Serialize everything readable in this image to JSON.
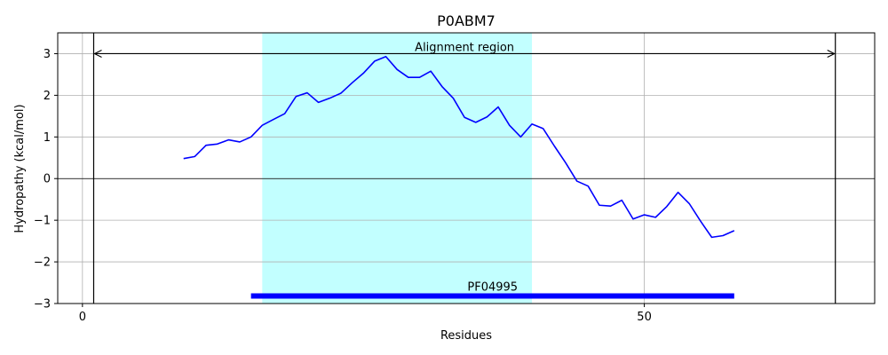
{
  "chart_data": {
    "type": "line",
    "title": "P0ABM7",
    "xlabel": "Residues",
    "ylabel": "Hydropathy (kcal/mol)",
    "xlim": [
      -2.2,
      70.5
    ],
    "ylim": [
      -3,
      3.5
    ],
    "x_ticks": [
      0,
      50
    ],
    "y_ticks": [
      -3,
      -2,
      -1,
      0,
      1,
      2,
      3
    ],
    "y_tick_labels": [
      "−3",
      "−2",
      "−1",
      "0",
      "1",
      "2",
      "3"
    ],
    "x_tick_labels": [
      "0",
      "50"
    ],
    "grid": true,
    "series": [
      {
        "color": "#0000ff",
        "x": [
          9,
          10,
          11,
          12,
          13,
          14,
          15,
          16,
          17,
          18,
          19,
          20,
          21,
          22,
          23,
          24,
          25,
          26,
          27,
          28,
          29,
          30,
          31,
          32,
          33,
          34,
          35,
          36,
          37,
          38,
          39,
          40,
          41,
          42,
          43,
          44,
          45,
          46,
          47,
          48,
          49,
          50,
          51,
          52,
          53,
          54,
          55,
          56,
          57,
          58
        ],
        "y": [
          0.48,
          0.53,
          0.8,
          0.83,
          0.93,
          0.88,
          1.0,
          1.28,
          1.42,
          1.56,
          1.97,
          2.06,
          1.83,
          1.93,
          2.05,
          2.3,
          2.53,
          2.82,
          2.93,
          2.62,
          2.43,
          2.43,
          2.58,
          2.21,
          1.93,
          1.47,
          1.35,
          1.48,
          1.72,
          1.28,
          1.0,
          1.31,
          1.2,
          0.78,
          0.38,
          -0.06,
          -0.18,
          -0.64,
          -0.66,
          -0.52,
          -0.97,
          -0.87,
          -0.93,
          -0.67,
          -0.33,
          -0.6,
          -1.02,
          -1.41,
          -1.37,
          -1.25
        ]
      }
    ],
    "highlight_region": {
      "x0": 16,
      "x1": 40,
      "color": "#c2ffff"
    },
    "vertical_lines": [
      1,
      67
    ],
    "alignment_arrow": {
      "x0": 1,
      "x1": 67,
      "y": 3,
      "label": "Alignment region"
    },
    "domain_bar": {
      "x0": 15,
      "x1": 58,
      "y": -2.82,
      "label": "PF04995",
      "color": "#0000ff"
    },
    "zero_line": 0
  }
}
